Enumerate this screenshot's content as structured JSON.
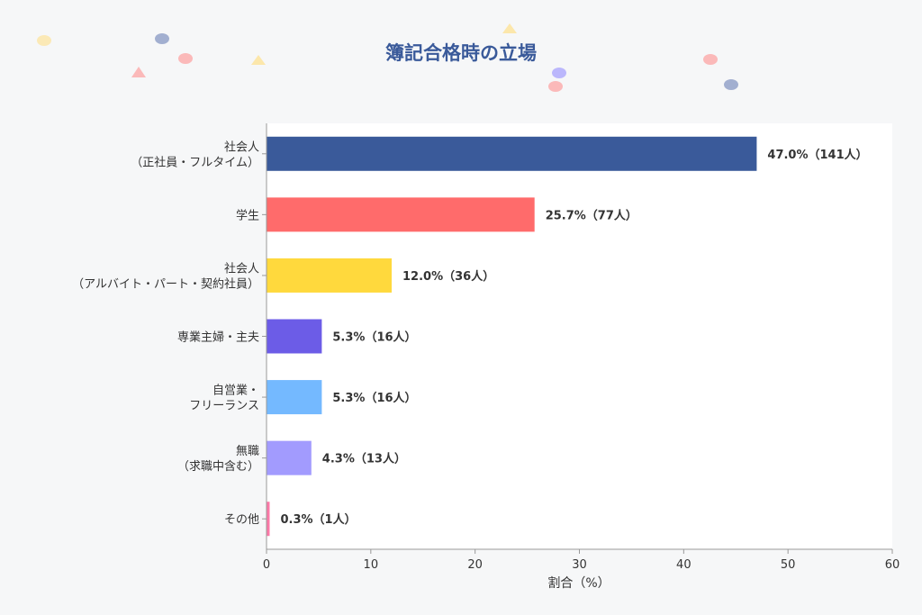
{
  "chart_data": {
    "type": "bar",
    "orientation": "horizontal",
    "title": "簿記合格時の立場",
    "xlabel": "割合（%）",
    "ylabel": "",
    "xlim": [
      0,
      60
    ],
    "x_ticks": [
      "0",
      "10",
      "20",
      "30",
      "40",
      "50",
      "60"
    ],
    "grid": false,
    "categories": [
      [
        "社会人",
        "（正社員・フルタイム）"
      ],
      [
        "学生"
      ],
      [
        "社会人",
        "（アルバイト・パート・契約社員）"
      ],
      [
        "専業主婦・主夫"
      ],
      [
        "自営業・",
        "フリーランス"
      ],
      [
        "無職",
        "（求職中含む）"
      ],
      [
        "その他"
      ]
    ],
    "values": [
      47.0,
      25.7,
      12.0,
      5.3,
      5.3,
      4.3,
      0.3
    ],
    "data_labels": [
      "47.0%（141人）",
      "25.7%（77人）",
      "12.0%（36人）",
      "5.3%（16人）",
      "5.3%（16人）",
      "4.3%（13人）",
      "0.3%（1人）"
    ],
    "colors": [
      "#3a5a9a",
      "#ff6b6b",
      "#ffd93d",
      "#6c5ce7",
      "#74b9ff",
      "#a29bfe",
      "#fd79a8"
    ]
  },
  "theme": {
    "background": "#f6f7f8",
    "plot_background": "#ffffff",
    "title_color": "#3a5a9a",
    "text_color": "#333333",
    "axis_color": "#999999"
  }
}
